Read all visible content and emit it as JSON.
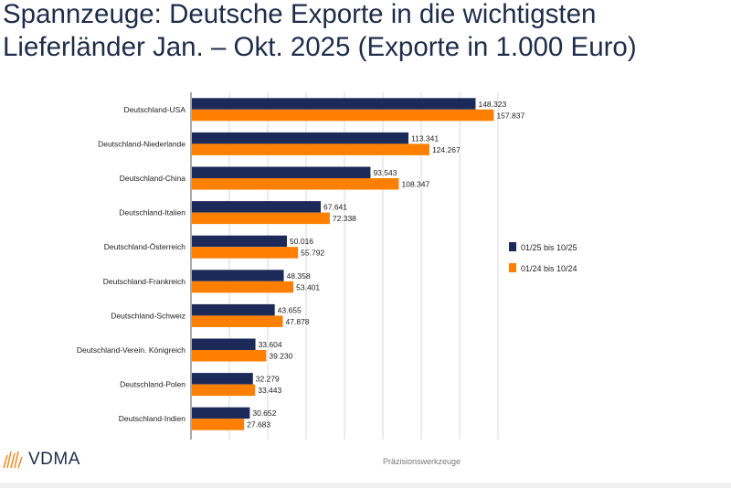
{
  "title": "Spannzeuge: Deutsche Exporte in die wichtigsten\nLieferländer Jan. – Okt. 2025 (Exporte in 1.000 Euro)",
  "footer": {
    "logo": "VDMA",
    "text": "Präzisionswerkzeuge"
  },
  "chart_data": {
    "type": "bar",
    "orientation": "horizontal",
    "categories": [
      "Deutschland-USA",
      "Deutschland-Niederlande",
      "Deutschland-China",
      "Deutschland-Italien",
      "Deutschland-Österreich",
      "Deutschland-Frankreich",
      "Deutschland-Schweiz",
      "Deutschland-Verein. Königreich",
      "Deutschland-Polen",
      "Deutschland-Indien"
    ],
    "series": [
      {
        "name": "01/25 bis 10/25",
        "color": "#1c2a5a",
        "values": [
          148323,
          113341,
          93543,
          67641,
          50016,
          48358,
          43655,
          33604,
          32279,
          30652
        ],
        "labels": [
          "148.323",
          "113.341",
          "93.543",
          "67.641",
          "50.016",
          "48.358",
          "43.655",
          "33.604",
          "32.279",
          "30.652"
        ]
      },
      {
        "name": "01/24 bis 10/24",
        "color": "#ff8000",
        "values": [
          157837,
          124267,
          108347,
          72338,
          55792,
          53401,
          47878,
          39230,
          33443,
          27683
        ],
        "labels": [
          "157.837",
          "124.267",
          "108.347",
          "72.338",
          "55.792",
          "53.401",
          "47.878",
          "39.230",
          "33.443",
          "27.683"
        ]
      }
    ],
    "xlim": [
      0,
      160000
    ],
    "grid": true,
    "legend": "right"
  }
}
